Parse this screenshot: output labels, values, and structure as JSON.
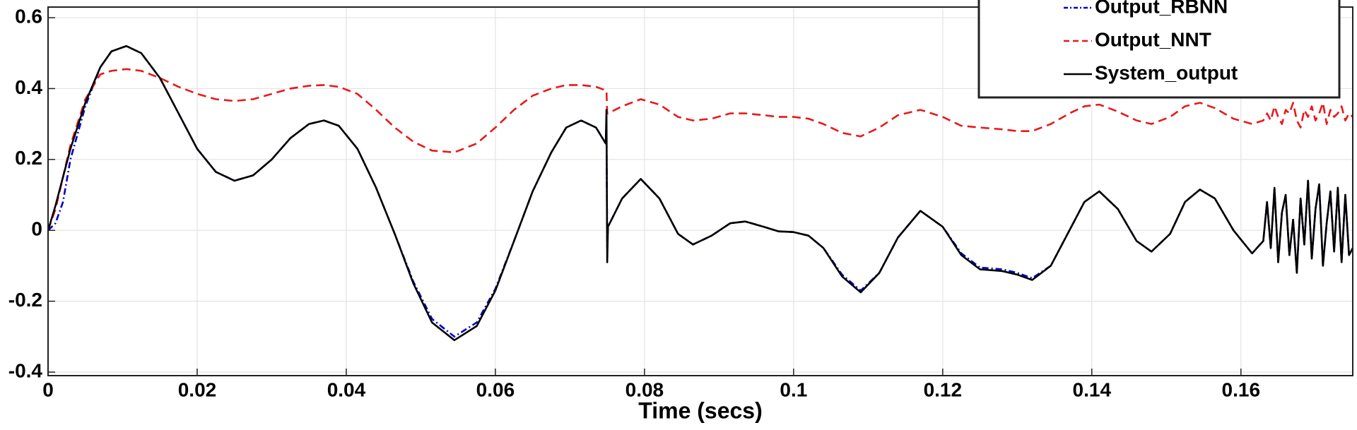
{
  "chart_data": {
    "type": "line",
    "xlabel": "Time (secs)",
    "x": [
      0,
      0.001,
      0.002,
      0.003,
      0.005,
      0.007,
      0.0085,
      0.0105,
      0.0125,
      0.015,
      0.0175,
      0.02,
      0.0225,
      0.025,
      0.0275,
      0.03,
      0.0325,
      0.035,
      0.037,
      0.039,
      0.0415,
      0.044,
      0.0465,
      0.049,
      0.0515,
      0.0545,
      0.0575,
      0.06,
      0.0625,
      0.065,
      0.0675,
      0.0695,
      0.0715,
      0.0735,
      0.0748,
      0.0749,
      0.075,
      0.0751,
      0.077,
      0.0795,
      0.082,
      0.0845,
      0.0865,
      0.089,
      0.0915,
      0.0935,
      0.096,
      0.098,
      0.1,
      0.102,
      0.104,
      0.1065,
      0.109,
      0.1115,
      0.114,
      0.117,
      0.12,
      0.1225,
      0.125,
      0.128,
      0.13,
      0.132,
      0.1345,
      0.137,
      0.139,
      0.141,
      0.1435,
      0.146,
      0.148,
      0.1505,
      0.1525,
      0.1545,
      0.1565,
      0.159,
      0.1615,
      0.163,
      0.1635,
      0.164,
      0.1645,
      0.165,
      0.1655,
      0.166,
      0.1665,
      0.167,
      0.1675,
      0.168,
      0.1685,
      0.169,
      0.1695,
      0.17,
      0.1705,
      0.171,
      0.1715,
      0.172,
      0.1725,
      0.173,
      0.1735,
      0.174,
      0.1745,
      0.175
    ],
    "series": [
      {
        "name": "Output_RBNN",
        "color": "#0000cc",
        "dash": "dashdot",
        "values": [
          0,
          0.02,
          0.08,
          0.2,
          0.35,
          0.46,
          0.505,
          0.52,
          0.5,
          0.43,
          0.33,
          0.23,
          0.165,
          0.14,
          0.155,
          0.2,
          0.26,
          0.3,
          0.31,
          0.295,
          0.23,
          0.12,
          -0.01,
          -0.145,
          -0.25,
          -0.3,
          -0.26,
          -0.165,
          -0.03,
          0.11,
          0.22,
          0.29,
          0.31,
          0.29,
          0.245,
          0.3,
          -0.05,
          0.01,
          0.09,
          0.145,
          0.09,
          -0.01,
          -0.04,
          -0.015,
          0.02,
          0.025,
          0.01,
          -0.003,
          -0.005,
          -0.015,
          -0.05,
          -0.125,
          -0.17,
          -0.12,
          -0.02,
          0.055,
          0.01,
          -0.065,
          -0.105,
          -0.11,
          -0.12,
          -0.135,
          -0.1,
          0.0,
          0.08,
          0.11,
          0.06,
          -0.03,
          -0.06,
          -0.01,
          0.08,
          0.115,
          0.09,
          0.0,
          -0.065,
          -0.03,
          0.08,
          -0.05,
          0.12,
          -0.09,
          0.05,
          0.1,
          -0.07,
          0.03,
          -0.12,
          0.09,
          -0.04,
          0.14,
          -0.08,
          0.06,
          0.13,
          -0.1,
          0.02,
          0.11,
          -0.06,
          0.12,
          -0.09,
          0.1,
          -0.07,
          -0.05
        ]
      },
      {
        "name": "Output_NNT",
        "color": "#e8191c",
        "dash": "dashed",
        "values": [
          0,
          0.06,
          0.15,
          0.24,
          0.37,
          0.44,
          0.45,
          0.455,
          0.45,
          0.43,
          0.405,
          0.385,
          0.37,
          0.365,
          0.37,
          0.385,
          0.4,
          0.408,
          0.41,
          0.405,
          0.385,
          0.34,
          0.29,
          0.25,
          0.225,
          0.22,
          0.245,
          0.29,
          0.34,
          0.38,
          0.4,
          0.41,
          0.41,
          0.405,
          0.395,
          0.395,
          0.33,
          0.33,
          0.35,
          0.37,
          0.355,
          0.32,
          0.31,
          0.315,
          0.33,
          0.33,
          0.325,
          0.32,
          0.32,
          0.315,
          0.3,
          0.275,
          0.265,
          0.29,
          0.325,
          0.34,
          0.32,
          0.295,
          0.29,
          0.285,
          0.28,
          0.28,
          0.3,
          0.33,
          0.35,
          0.355,
          0.335,
          0.31,
          0.3,
          0.32,
          0.35,
          0.36,
          0.345,
          0.315,
          0.3,
          0.31,
          0.33,
          0.31,
          0.35,
          0.32,
          0.3,
          0.34,
          0.33,
          0.36,
          0.31,
          0.29,
          0.34,
          0.32,
          0.35,
          0.31,
          0.33,
          0.36,
          0.3,
          0.34,
          0.32,
          0.33,
          0.35,
          0.31,
          0.33,
          0.32
        ]
      },
      {
        "name": "System_output",
        "color": "#000000",
        "dash": "solid",
        "values": [
          0,
          0.07,
          0.15,
          0.23,
          0.36,
          0.46,
          0.505,
          0.52,
          0.5,
          0.43,
          0.33,
          0.23,
          0.165,
          0.14,
          0.155,
          0.2,
          0.26,
          0.3,
          0.31,
          0.295,
          0.23,
          0.12,
          -0.01,
          -0.15,
          -0.26,
          -0.31,
          -0.27,
          -0.17,
          -0.03,
          0.11,
          0.22,
          0.29,
          0.31,
          0.29,
          0.245,
          0.34,
          -0.09,
          0.01,
          0.09,
          0.145,
          0.09,
          -0.01,
          -0.04,
          -0.015,
          0.02,
          0.025,
          0.01,
          -0.003,
          -0.005,
          -0.015,
          -0.05,
          -0.13,
          -0.175,
          -0.12,
          -0.02,
          0.055,
          0.01,
          -0.07,
          -0.11,
          -0.115,
          -0.125,
          -0.14,
          -0.1,
          0.0,
          0.08,
          0.11,
          0.06,
          -0.03,
          -0.06,
          -0.01,
          0.08,
          0.115,
          0.09,
          0.0,
          -0.065,
          -0.03,
          0.08,
          -0.05,
          0.12,
          -0.09,
          0.05,
          0.1,
          -0.07,
          0.03,
          -0.12,
          0.09,
          -0.04,
          0.14,
          -0.08,
          0.06,
          0.13,
          -0.1,
          0.02,
          0.11,
          -0.06,
          0.12,
          -0.09,
          0.1,
          -0.07,
          -0.05
        ]
      }
    ],
    "xlim": [
      0,
      0.175
    ],
    "ylim": [
      -0.41,
      0.63
    ],
    "xticks": [
      0,
      0.02,
      0.04,
      0.06,
      0.08,
      0.1,
      0.12,
      0.14,
      0.16
    ],
    "yticks": [
      -0.4,
      -0.2,
      0,
      0.2,
      0.4,
      0.6
    ],
    "grid": true,
    "legend": "northeast"
  }
}
